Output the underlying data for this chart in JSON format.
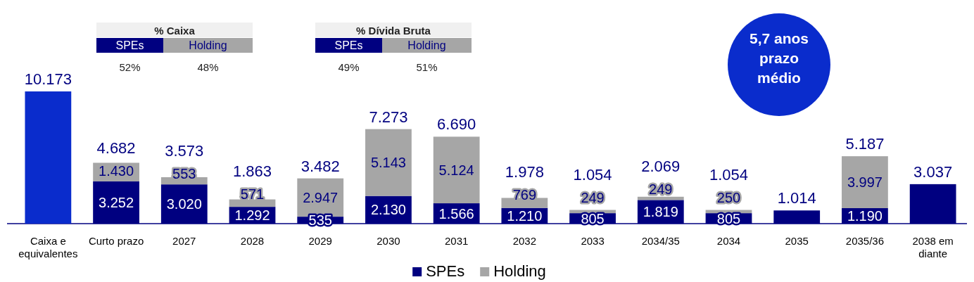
{
  "chart_data": {
    "type": "bar",
    "stacked": true,
    "categories": [
      "Caixa e equivalentes",
      "Curto prazo",
      "2027",
      "2028",
      "2029",
      "2030",
      "2031",
      "2032",
      "2033",
      "2034/35",
      "2034",
      "2035",
      "2035/36",
      "2038 em diante"
    ],
    "series": [
      {
        "name": "SPEs",
        "color": "#000080",
        "colors": [
          "#0a2ccc",
          "#000080",
          "#000080",
          "#000080",
          "#000080",
          "#000080",
          "#000080",
          "#000080",
          "#000080",
          "#000080",
          "#000080",
          "#000080",
          "#000080",
          "#000080"
        ],
        "values": [
          10173,
          3252,
          3020,
          1292,
          535,
          2130,
          1566,
          1210,
          805,
          1819,
          805,
          1014,
          1190,
          3037
        ],
        "value_labels": [
          null,
          "3.252",
          "3.020",
          "1.292",
          "535",
          "2.130",
          "1.566",
          "1.210",
          "805",
          "1.819",
          "805",
          null,
          "1.190",
          null
        ]
      },
      {
        "name": "Holding",
        "color": "#a6a6a6",
        "values": [
          null,
          1430,
          553,
          571,
          2947,
          5143,
          5124,
          769,
          249,
          249,
          250,
          null,
          3997,
          null
        ],
        "value_labels": [
          null,
          "1.430",
          "553",
          "571",
          "2.947",
          "5.143",
          "5.124",
          "769",
          "249",
          "249",
          "250",
          null,
          "3.997",
          null
        ]
      }
    ],
    "totals": [
      "10.173",
      "4.682",
      "3.573",
      "1.863",
      "3.482",
      "7.273",
      "6.690",
      "1.978",
      "1.054",
      "2.069",
      "1.054",
      "1.014",
      "5.187",
      "3.037"
    ],
    "legend": "bottom",
    "annotations": [
      "% Caixa",
      "SPEs",
      "Holding",
      "52%",
      "48%",
      "% Dívida Bruta",
      "SPEs",
      "Holding",
      "49%",
      "51%",
      "5,7 anos prazo médio"
    ]
  }
}
